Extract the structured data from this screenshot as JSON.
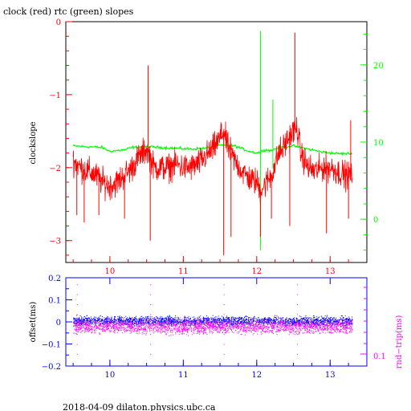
{
  "colors": {
    "red": "#ff0000",
    "green": "#00ff00",
    "blue": "#0000ff",
    "magenta": "#ff00ff",
    "black": "#000000"
  },
  "footer": "2018-04-09 dilaton.physics.ubc.ca",
  "chart_data": [
    {
      "type": "line",
      "title": "clock (red) rtc (green) slopes",
      "ylabel": "clockslope",
      "x_ticks": [
        10,
        11,
        12,
        13
      ],
      "xlim": [
        9.4,
        13.5
      ],
      "y_left": {
        "ylim": [
          -3.3,
          0
        ],
        "ticks": [
          "0",
          "−1",
          "−2",
          "−3"
        ],
        "tick_values": [
          0,
          -1,
          -2,
          -3
        ]
      },
      "y_right": {
        "ylim": [
          -5.6,
          25.6
        ],
        "ticks": [
          "20",
          "10",
          "0"
        ],
        "tick_values": [
          20,
          10,
          0
        ]
      },
      "series": [
        {
          "color": "red",
          "axis": "left",
          "x": [
            9.5,
            9.6,
            9.7,
            9.8,
            9.9,
            10.0,
            10.1,
            10.2,
            10.3,
            10.4,
            10.45,
            10.5,
            10.55,
            10.6,
            10.7,
            10.8,
            10.9,
            11.0,
            11.1,
            11.2,
            11.3,
            11.4,
            11.5,
            11.55,
            11.6,
            11.7,
            11.8,
            11.9,
            12.0,
            12.05,
            12.1,
            12.2,
            12.3,
            12.35,
            12.4,
            12.5,
            12.55,
            12.6,
            12.7,
            12.8,
            12.9,
            13.0,
            13.1,
            13.2,
            13.3
          ],
          "y": [
            -1.9,
            -2.0,
            -2.05,
            -2.1,
            -2.2,
            -2.25,
            -2.2,
            -2.1,
            -2.0,
            -1.85,
            -1.8,
            -1.75,
            -1.85,
            -2.0,
            -2.0,
            -2.0,
            -1.95,
            -2.0,
            -2.0,
            -1.95,
            -1.85,
            -1.75,
            -1.6,
            -1.5,
            -1.7,
            -1.9,
            -2.05,
            -2.15,
            -2.2,
            -2.3,
            -2.25,
            -2.1,
            -1.8,
            -1.75,
            -1.65,
            -1.5,
            -1.45,
            -1.8,
            -2.0,
            -2.05,
            -2.0,
            -2.0,
            -2.05,
            -2.1,
            -2.1
          ],
          "spikes": [
            {
              "x": 9.55,
              "y": -2.65
            },
            {
              "x": 9.65,
              "y": -2.75
            },
            {
              "x": 9.85,
              "y": -2.65
            },
            {
              "x": 10.2,
              "y": -2.7
            },
            {
              "x": 10.52,
              "y": -0.6
            },
            {
              "x": 10.55,
              "y": -3.0
            },
            {
              "x": 11.52,
              "y": -1.4
            },
            {
              "x": 11.55,
              "y": -3.2
            },
            {
              "x": 11.65,
              "y": -2.95
            },
            {
              "x": 12.05,
              "y": -2.95
            },
            {
              "x": 12.2,
              "y": -2.7
            },
            {
              "x": 12.52,
              "y": -0.15
            },
            {
              "x": 12.45,
              "y": -2.8
            },
            {
              "x": 12.95,
              "y": -2.9
            },
            {
              "x": 13.25,
              "y": -2.7
            },
            {
              "x": 13.28,
              "y": -1.35
            }
          ]
        },
        {
          "color": "green",
          "axis": "right",
          "x": [
            9.5,
            9.7,
            9.9,
            10.0,
            10.2,
            10.3,
            10.5,
            10.7,
            10.9,
            11.1,
            11.3,
            11.5,
            11.7,
            11.9,
            12.0,
            12.05,
            12.1,
            12.2,
            12.3,
            12.5,
            12.7,
            12.9,
            13.1,
            13.3
          ],
          "y": [
            9.5,
            9.4,
            9.3,
            8.8,
            9.0,
            9.3,
            9.4,
            9.3,
            9.2,
            9.1,
            9.2,
            9.6,
            9.5,
            8.8,
            8.6,
            8.7,
            9.0,
            8.9,
            9.3,
            9.5,
            9.1,
            8.7,
            8.5,
            8.5
          ],
          "spikes": [
            {
              "x": 12.05,
              "y": 24.4
            },
            {
              "x": 12.05,
              "y": -4.0
            },
            {
              "x": 12.22,
              "y": 15.5
            },
            {
              "x": 12.22,
              "y": 6.6
            }
          ]
        }
      ]
    },
    {
      "type": "scatter",
      "ylabel": "offset(ms)",
      "ylabel_right": "rnd−trip(ms)",
      "x_ticks": [
        10,
        11,
        12,
        13
      ],
      "xlim": [
        9.4,
        13.5
      ],
      "ylim": [
        -0.2,
        0.2
      ],
      "y_ticks": [
        "0.2",
        "0.1",
        "0",
        "−0.1",
        "−0.2"
      ],
      "y_tick_values": [
        0.2,
        0.1,
        0,
        -0.1,
        -0.2
      ],
      "y_right_ticks": [
        "0.1"
      ],
      "x_range": [
        9.5,
        13.3
      ],
      "series": [
        {
          "color": "blue",
          "center": 0.005,
          "spread": 0.03
        },
        {
          "color": "magenta",
          "center": -0.02,
          "spread": 0.045
        }
      ]
    }
  ]
}
